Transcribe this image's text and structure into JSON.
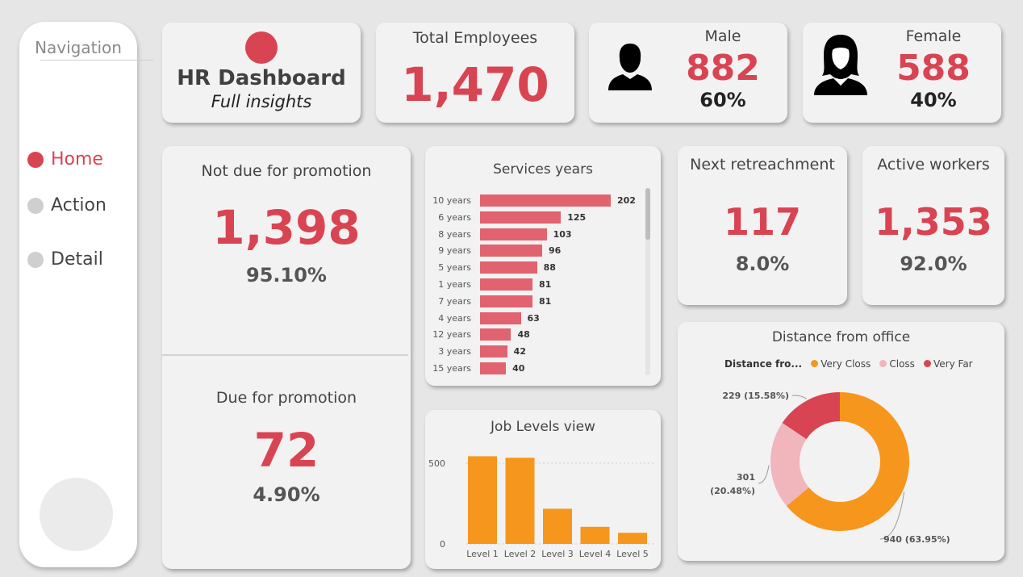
{
  "nav": {
    "title": "Navigation",
    "items": [
      {
        "label": "Home",
        "active": true
      },
      {
        "label": "Action",
        "active": false
      },
      {
        "label": "Detail",
        "active": false
      }
    ]
  },
  "header": {
    "title": "HR Dashboard",
    "subtitle": "Full insights"
  },
  "total": {
    "title": "Total Employees",
    "value": "1,470"
  },
  "male": {
    "title": "Male",
    "value": "882",
    "pct": "60%",
    "icon": "male-user-icon"
  },
  "female": {
    "title": "Female",
    "value": "588",
    "pct": "40%",
    "icon": "female-user-icon"
  },
  "not_due": {
    "title": "Not due for promotion",
    "value": "1,398",
    "pct": "95.10%"
  },
  "due": {
    "title": "Due for promotion",
    "value": "72",
    "pct": "4.90%"
  },
  "retreachment": {
    "title": "Next retreachment",
    "value": "117",
    "pct": "8.0%"
  },
  "active": {
    "title": "Active workers",
    "value": "1,353",
    "pct": "92.0%"
  },
  "colors": {
    "accent": "#d94452",
    "bar": "#e0636f",
    "orange": "#f7961c",
    "pink": "#f0b6bb"
  },
  "chart_data": [
    {
      "type": "bar",
      "orientation": "horizontal",
      "title": "Services years",
      "categories": [
        "10 years",
        "6 years",
        "8 years",
        "9 years",
        "5 years",
        "1 years",
        "7 years",
        "4 years",
        "12 years",
        "3 years",
        "15 years"
      ],
      "values": [
        202,
        125,
        103,
        96,
        88,
        81,
        81,
        63,
        48,
        42,
        40
      ],
      "xlim": [
        0,
        202
      ]
    },
    {
      "type": "bar",
      "title": "Job Levels view",
      "categories": [
        "Level 1",
        "Level 2",
        "Level 3",
        "Level 4",
        "Level 5"
      ],
      "values": [
        543,
        534,
        218,
        106,
        69
      ],
      "yticks": [
        0,
        500
      ],
      "ylim": [
        0,
        600
      ]
    },
    {
      "type": "pie",
      "donut": true,
      "title": "Distance from office",
      "legend_title": "Distance fro...",
      "labels": [
        "Very Closs",
        "Closs",
        "Very Far"
      ],
      "values": [
        940,
        301,
        229
      ],
      "value_labels": [
        "940 (63.95%)",
        "301 (20.48%)",
        "229 (15.58%)"
      ],
      "colors": [
        "#f7961c",
        "#f0b6bb",
        "#d94452"
      ],
      "legend_position": "top"
    }
  ]
}
